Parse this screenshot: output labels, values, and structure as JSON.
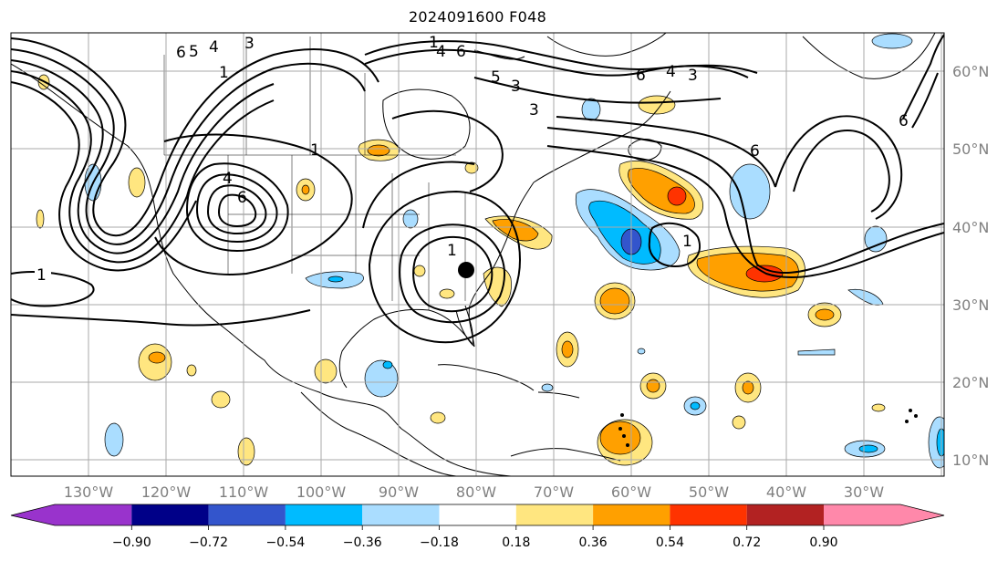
{
  "title": "2024091600 F048",
  "map": {
    "lon_labels": [
      "130°W",
      "120°W",
      "110°W",
      "100°W",
      "90°W",
      "80°W",
      "70°W",
      "60°W",
      "50°W",
      "40°W",
      "30°W"
    ],
    "lat_labels": [
      "60°N",
      "50°N",
      "40°N",
      "30°N",
      "20°N",
      "10°N"
    ],
    "contour_labels": [
      "1",
      "6",
      "5",
      "4",
      "3",
      "1",
      "1",
      "1",
      "4",
      "6",
      "1",
      "6",
      "4",
      "3",
      "3",
      "6",
      "6",
      "6",
      "1",
      "4",
      "5",
      "3"
    ],
    "storm_marker": "black dot",
    "grid": true
  },
  "colorbar": {
    "tick_labels": [
      "−0.90",
      "−0.72",
      "−0.54",
      "−0.36",
      "−0.18",
      "0.18",
      "0.36",
      "0.54",
      "0.72",
      "0.90"
    ],
    "colors": [
      "#9933cc",
      "#000088",
      "#3355cc",
      "#00bbff",
      "#aaddff",
      "#ffffff",
      "#ffe680",
      "#ffa000",
      "#ff3300",
      "#b22222",
      "#ff88aa"
    ],
    "extend": "both"
  },
  "palette": {
    "light_yellow": "#ffe680",
    "orange": "#ffa000",
    "red_orange": "#ff3300",
    "light_blue": "#aaddff",
    "cyan": "#00bbff",
    "blue": "#3355cc"
  }
}
